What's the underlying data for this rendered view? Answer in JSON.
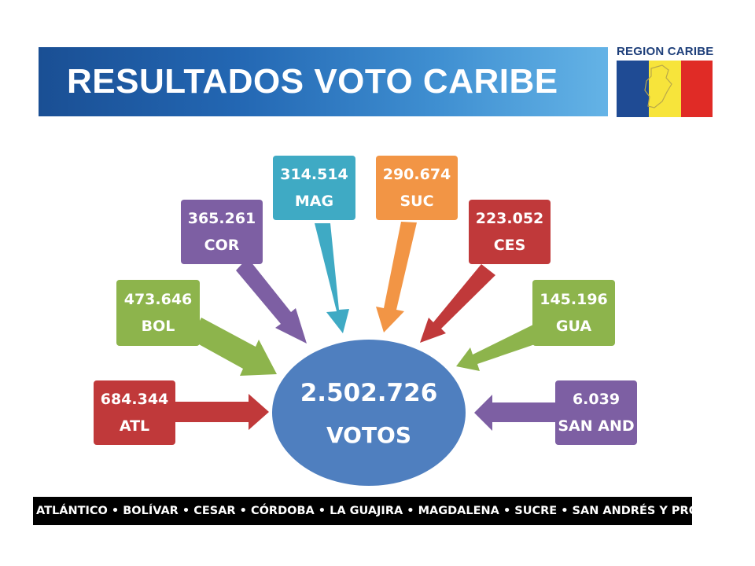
{
  "header": {
    "title": "RESULTADOS VOTO CARIBE",
    "logo_text": "REGION CARIBE"
  },
  "center": {
    "value": "2.502.726",
    "unit": "VOTOS",
    "color": "#4f7fbf"
  },
  "nodes": [
    {
      "id": "atl",
      "value": "684.344",
      "label": "ATL",
      "color": "#c0393a"
    },
    {
      "id": "bol",
      "value": "473.646",
      "label": "BOL",
      "color": "#8db44c"
    },
    {
      "id": "cor",
      "value": "365.261",
      "label": "COR",
      "color": "#7d5fa3"
    },
    {
      "id": "mag",
      "value": "314.514",
      "label": "MAG",
      "color": "#3faac4"
    },
    {
      "id": "suc",
      "value": "290.674",
      "label": "SUC",
      "color": "#f29545"
    },
    {
      "id": "ces",
      "value": "223.052",
      "label": "CES",
      "color": "#c0393a"
    },
    {
      "id": "gua",
      "value": "145.196",
      "label": "GUA",
      "color": "#8db44c"
    },
    {
      "id": "san",
      "value": "6.039",
      "label": "SAN AND",
      "color": "#7d5fa3"
    }
  ],
  "footer": {
    "text": "ATLÁNTICO • BOLÍVAR • CESAR • CÓRDOBA • LA GUAJIRA • MAGDALENA • SUCRE • SAN ANDRÉS Y PROVIDENCIA"
  },
  "logo_flag_colors": [
    "#1f4b94",
    "#f7e43b",
    "#e02b26"
  ]
}
